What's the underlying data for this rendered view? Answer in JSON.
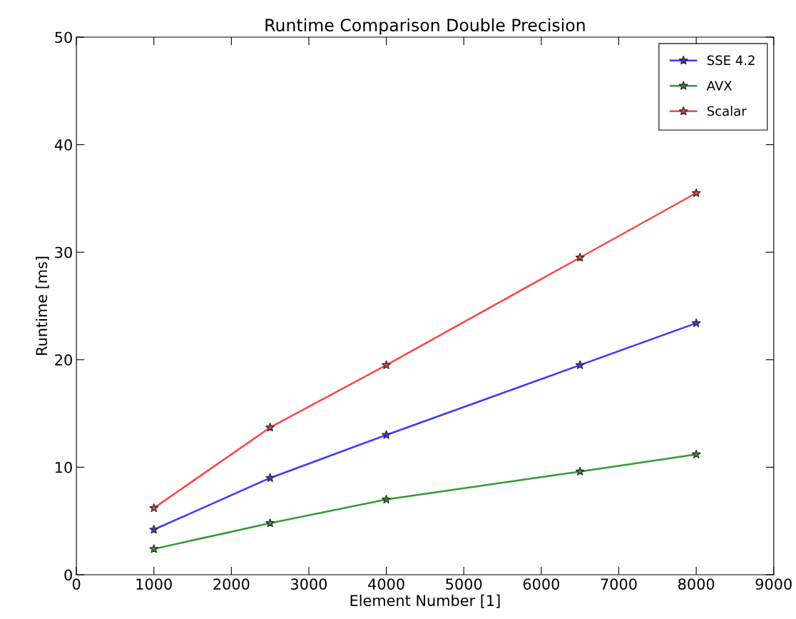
{
  "chart_data": {
    "type": "line",
    "title": "Runtime Comparison Double Precision",
    "xlabel": "Element Number [1]",
    "ylabel": "Runtime [ms]",
    "x": [
      1000,
      2500,
      4000,
      6500,
      8000
    ],
    "series": [
      {
        "name": "SSE 4.2",
        "color": "#3a3aff",
        "values": [
          4.2,
          9.0,
          13.0,
          19.5,
          23.4
        ]
      },
      {
        "name": "AVX",
        "color": "#339933",
        "values": [
          2.4,
          4.8,
          7.0,
          9.6,
          11.2
        ]
      },
      {
        "name": "Scalar",
        "color": "#ff4444",
        "values": [
          6.2,
          13.7,
          19.5,
          29.5,
          35.5
        ]
      }
    ],
    "xlim": [
      0,
      9000
    ],
    "xticks": [
      0,
      1000,
      2000,
      3000,
      4000,
      5000,
      6000,
      7000,
      8000,
      9000
    ],
    "ylim": [
      0,
      50
    ],
    "yticks": [
      0,
      10,
      20,
      30,
      40,
      50
    ],
    "grid": false,
    "legend": "top right",
    "marker": "star",
    "line_style": "solid"
  }
}
